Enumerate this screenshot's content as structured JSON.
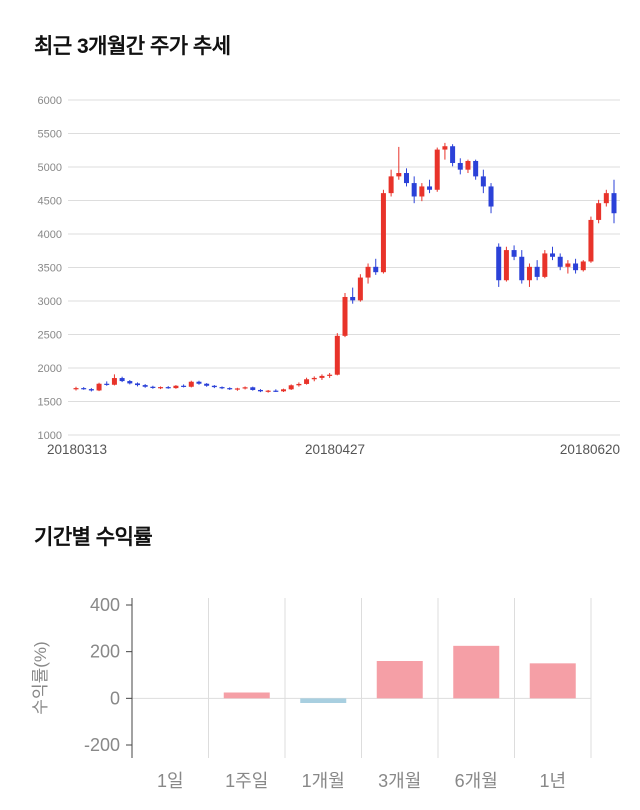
{
  "page": {
    "background_color": "#ffffff"
  },
  "chart_data": [
    {
      "type": "candlestick",
      "title": "최근 3개월간 주가 추세",
      "x_tick_labels": [
        "20180313",
        "20180427",
        "20180620"
      ],
      "y_ticks": [
        6000,
        5500,
        5000,
        4500,
        4000,
        3500,
        3000,
        2500,
        2000,
        1500,
        1000
      ],
      "ylim": [
        1000,
        6000
      ],
      "grid": true,
      "up_color": "#e8332a",
      "down_color": "#2b41d8",
      "grid_color": "#dddddd",
      "axis_text_color": "#888888",
      "date_text_color": "#555555",
      "candles": [
        [
          1690,
          1720,
          1665,
          1700
        ],
        [
          1700,
          1715,
          1675,
          1685
        ],
        [
          1685,
          1700,
          1650,
          1665
        ],
        [
          1665,
          1780,
          1655,
          1765
        ],
        [
          1765,
          1800,
          1735,
          1750
        ],
        [
          1750,
          1905,
          1740,
          1850
        ],
        [
          1850,
          1870,
          1790,
          1805
        ],
        [
          1805,
          1820,
          1755,
          1770
        ],
        [
          1770,
          1785,
          1725,
          1745
        ],
        [
          1745,
          1760,
          1705,
          1720
        ],
        [
          1720,
          1735,
          1690,
          1705
        ],
        [
          1705,
          1725,
          1685,
          1715
        ],
        [
          1715,
          1730,
          1690,
          1700
        ],
        [
          1700,
          1745,
          1690,
          1735
        ],
        [
          1735,
          1755,
          1710,
          1720
        ],
        [
          1720,
          1810,
          1710,
          1795
        ],
        [
          1795,
          1810,
          1750,
          1765
        ],
        [
          1765,
          1775,
          1720,
          1735
        ],
        [
          1735,
          1745,
          1700,
          1715
        ],
        [
          1715,
          1725,
          1685,
          1700
        ],
        [
          1700,
          1712,
          1672,
          1685
        ],
        [
          1685,
          1705,
          1660,
          1695
        ],
        [
          1695,
          1725,
          1680,
          1712
        ],
        [
          1712,
          1722,
          1662,
          1672
        ],
        [
          1672,
          1685,
          1640,
          1652
        ],
        [
          1652,
          1672,
          1632,
          1662
        ],
        [
          1662,
          1682,
          1642,
          1652
        ],
        [
          1652,
          1692,
          1642,
          1682
        ],
        [
          1682,
          1755,
          1672,
          1742
        ],
        [
          1742,
          1785,
          1722,
          1762
        ],
        [
          1762,
          1855,
          1752,
          1832
        ],
        [
          1832,
          1875,
          1802,
          1852
        ],
        [
          1852,
          1905,
          1822,
          1882
        ],
        [
          1882,
          1925,
          1852,
          1900
        ],
        [
          1900,
          2520,
          1890,
          2480
        ],
        [
          2480,
          3120,
          2460,
          3060
        ],
        [
          3060,
          3200,
          2960,
          3010
        ],
        [
          3010,
          3400,
          2990,
          3350
        ],
        [
          3350,
          3560,
          3260,
          3510
        ],
        [
          3510,
          3630,
          3390,
          3430
        ],
        [
          3430,
          4660,
          3410,
          4610
        ],
        [
          4610,
          4960,
          4560,
          4860
        ],
        [
          4860,
          5300,
          4810,
          4910
        ],
        [
          4910,
          4980,
          4710,
          4760
        ],
        [
          4760,
          4860,
          4460,
          4560
        ],
        [
          4560,
          4760,
          4490,
          4710
        ],
        [
          4710,
          4810,
          4610,
          4660
        ],
        [
          4660,
          5290,
          4630,
          5260
        ],
        [
          5260,
          5360,
          5110,
          5310
        ],
        [
          5310,
          5340,
          5010,
          5060
        ],
        [
          5060,
          5130,
          4890,
          4960
        ],
        [
          4960,
          5110,
          4910,
          5090
        ],
        [
          5090,
          5110,
          4810,
          4860
        ],
        [
          4860,
          4960,
          4610,
          4710
        ],
        [
          4710,
          4760,
          4310,
          4410
        ],
        [
          3810,
          3860,
          3210,
          3310
        ],
        [
          3310,
          3810,
          3290,
          3760
        ],
        [
          3760,
          3830,
          3610,
          3660
        ],
        [
          3660,
          3760,
          3260,
          3310
        ],
        [
          3310,
          3560,
          3210,
          3510
        ],
        [
          3510,
          3610,
          3310,
          3360
        ],
        [
          3360,
          3760,
          3340,
          3710
        ],
        [
          3710,
          3810,
          3610,
          3660
        ],
        [
          3660,
          3710,
          3460,
          3510
        ],
        [
          3510,
          3610,
          3410,
          3560
        ],
        [
          3560,
          3630,
          3410,
          3460
        ],
        [
          3460,
          3610,
          3440,
          3590
        ],
        [
          3590,
          4260,
          3570,
          4210
        ],
        [
          4210,
          4510,
          4160,
          4460
        ],
        [
          4460,
          4660,
          4410,
          4610
        ],
        [
          4610,
          4810,
          4160,
          4310
        ]
      ]
    },
    {
      "type": "bar",
      "title": "기간별 수익률",
      "categories": [
        "1일",
        "1주일",
        "1개월",
        "3개월",
        "6개월",
        "1년"
      ],
      "values": [
        0,
        25,
        -20,
        160,
        225,
        150
      ],
      "ylabel": "수익률(%)",
      "ylim": [
        -200,
        400
      ],
      "y_ticks": [
        400,
        200,
        0,
        -200
      ],
      "grid": "vertical",
      "positive_color": "#f59fa6",
      "negative_color": "#a8cfe0",
      "grid_color": "#dddddd",
      "axis_line_color": "#444444",
      "axis_text_color": "#888888"
    }
  ]
}
